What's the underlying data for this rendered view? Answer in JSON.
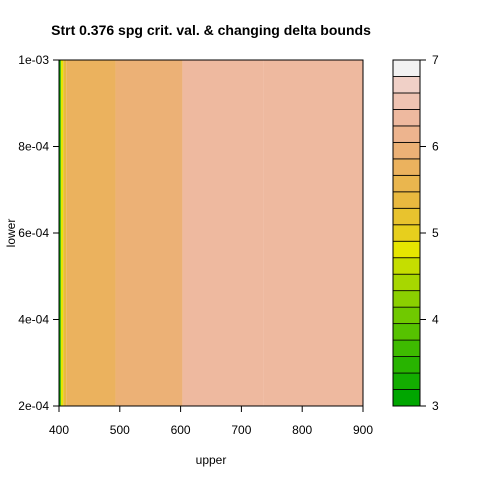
{
  "chart_data": {
    "type": "heatmap",
    "title": "Strt 0.376 spg crit. val. & changing delta bounds",
    "xlabel": "upper",
    "ylabel": "lower",
    "xlim": [
      400,
      900
    ],
    "ylim": [
      0.0002,
      0.001
    ],
    "x_ticks": [
      400,
      500,
      600,
      700,
      800,
      900
    ],
    "x_tick_labels": [
      "400",
      "500",
      "600",
      "700",
      "800",
      "900"
    ],
    "y_ticks": [
      0.0002,
      0.0004,
      0.0006,
      0.0008,
      0.001
    ],
    "y_tick_labels": [
      "2e-04",
      "4e-04",
      "6e-04",
      "8e-04",
      "1e-03"
    ],
    "regions": [
      {
        "x_from": 400,
        "x_to": 403,
        "level": 3.1
      },
      {
        "x_from": 403,
        "x_to": 407,
        "level": 4.9
      },
      {
        "x_from": 407,
        "x_to": 412,
        "level": 5.4
      },
      {
        "x_from": 412,
        "x_to": 493,
        "level": 5.9
      },
      {
        "x_from": 493,
        "x_to": 603,
        "level": 6.1
      },
      {
        "x_from": 603,
        "x_to": 737,
        "level": 6.4
      },
      {
        "x_from": 737,
        "x_to": 900,
        "level": 6.6
      }
    ],
    "legend": {
      "placement": "right",
      "min": 3,
      "max": 7,
      "step": 0.2,
      "tick_values": [
        3,
        4,
        5,
        6,
        7
      ],
      "tick_labels": [
        "3",
        "4",
        "5",
        "6",
        "7"
      ],
      "colors": [
        "#00A600",
        "#13AD00",
        "#28B400",
        "#3EBB00",
        "#56C200",
        "#70C900",
        "#8BD000",
        "#A7D700",
        "#C5DE00",
        "#E6E600",
        "#E7CF1D",
        "#E8C32E",
        "#E9B93F",
        "#EAB64E",
        "#EBB25E",
        "#ECB176",
        "#EDB48E",
        "#EEB99F",
        "#EFC3B2",
        "#F0D0C7",
        "#F2F2F2"
      ]
    }
  }
}
